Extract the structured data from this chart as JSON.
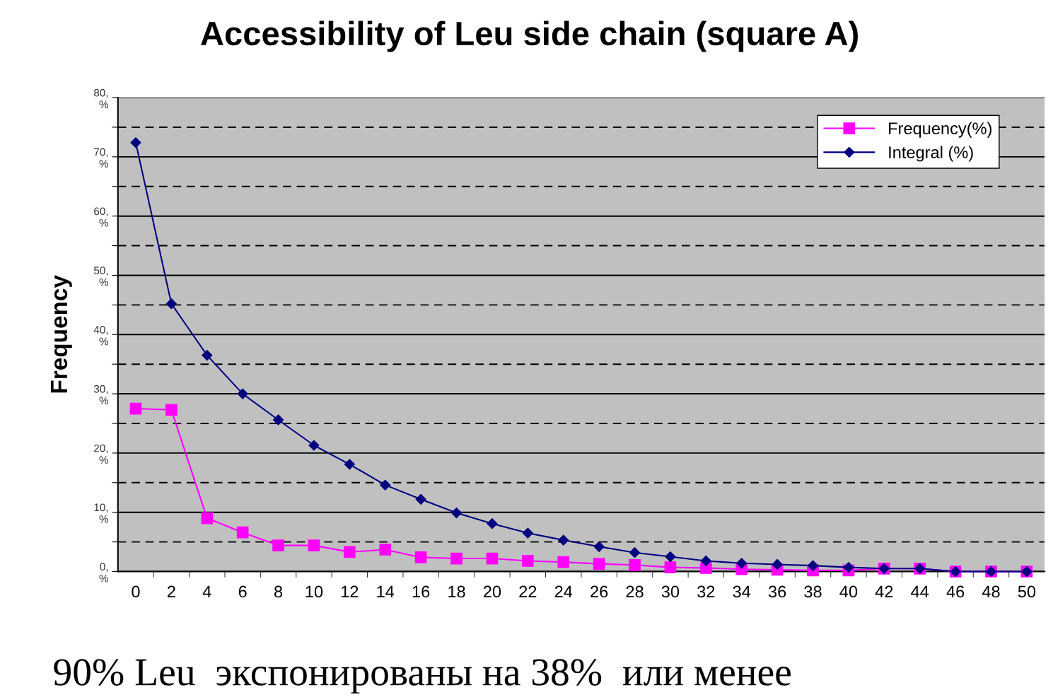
{
  "chart_data": {
    "type": "line",
    "title": "Accessibility of Leu side chain (square A)",
    "ylabel": "Frequency",
    "categories": [
      "0",
      "2",
      "4",
      "6",
      "8",
      "10",
      "12",
      "14",
      "16",
      "18",
      "20",
      "22",
      "24",
      "26",
      "28",
      "30",
      "32",
      "34",
      "36",
      "38",
      "40",
      "42",
      "44",
      "46",
      "48",
      "50"
    ],
    "series": [
      {
        "name": "Frequency(%)",
        "color": "#ff00ff",
        "marker": "square",
        "values": [
          27.5,
          27.3,
          9.0,
          6.6,
          4.4,
          4.4,
          3.3,
          3.7,
          2.4,
          2.2,
          2.2,
          1.8,
          1.6,
          1.3,
          1.1,
          0.7,
          0.6,
          0.4,
          0.3,
          0.2,
          0.2,
          0.5,
          0.5,
          0,
          0,
          0
        ]
      },
      {
        "name": "Integral (%)",
        "color": "#000080",
        "marker": "diamond",
        "values": [
          72.4,
          45.2,
          36.5,
          30.0,
          25.6,
          21.3,
          18.1,
          14.6,
          12.2,
          9.9,
          8.1,
          6.5,
          5.3,
          4.2,
          3.2,
          2.5,
          1.8,
          1.4,
          1.2,
          1.0,
          0.7,
          0.5,
          0.5,
          0,
          0,
          0
        ]
      }
    ],
    "ylim": [
      0,
      80
    ],
    "yticks": [
      {
        "value": 0,
        "label": "0,\n%"
      },
      {
        "value": 5,
        "label": null
      },
      {
        "value": 10,
        "label": "10,\n%"
      },
      {
        "value": 15,
        "label": null
      },
      {
        "value": 20,
        "label": "20,\n%"
      },
      {
        "value": 25,
        "label": null
      },
      {
        "value": 30,
        "label": "30,\n%"
      },
      {
        "value": 35,
        "label": null
      },
      {
        "value": 40,
        "label": "40,\n%"
      },
      {
        "value": 45,
        "label": null
      },
      {
        "value": 50,
        "label": "50,\n%"
      },
      {
        "value": 55,
        "label": null
      },
      {
        "value": 60,
        "label": "60,\n%"
      },
      {
        "value": 65,
        "label": null
      },
      {
        "value": 70,
        "label": "70,\n%"
      },
      {
        "value": 75,
        "label": null
      },
      {
        "value": 80,
        "label": "80,\n%"
      }
    ],
    "grid": "y",
    "legend": "top right",
    "line_style": "solid",
    "annotations": [
      "90% Leu  экспонированы на 38%  или менее"
    ]
  }
}
